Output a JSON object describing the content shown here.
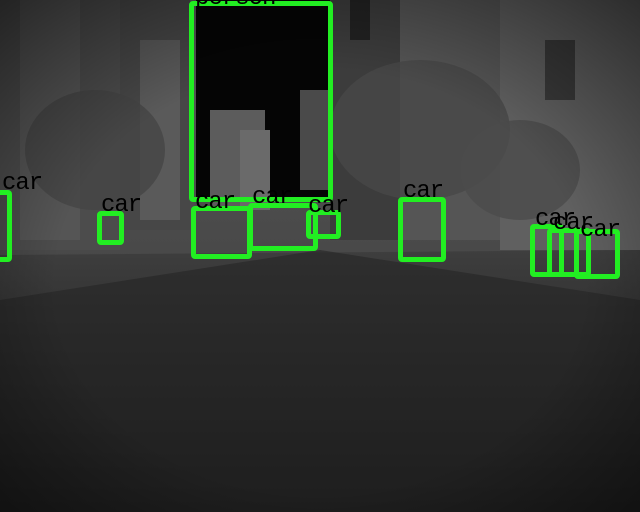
{
  "scene": {
    "description_colors": {
      "box": "#22ee22",
      "label": "#000000"
    }
  },
  "detections": [
    {
      "label": "person",
      "class": "person"
    },
    {
      "label": "car",
      "class": "car"
    },
    {
      "label": "car",
      "class": "car"
    },
    {
      "label": "car",
      "class": "car"
    },
    {
      "label": "car",
      "class": "car"
    },
    {
      "label": "car",
      "class": "car"
    },
    {
      "label": "car",
      "class": "car"
    },
    {
      "label": "car",
      "class": "car"
    },
    {
      "label": "car",
      "class": "car"
    },
    {
      "label": "car",
      "class": "car"
    }
  ]
}
